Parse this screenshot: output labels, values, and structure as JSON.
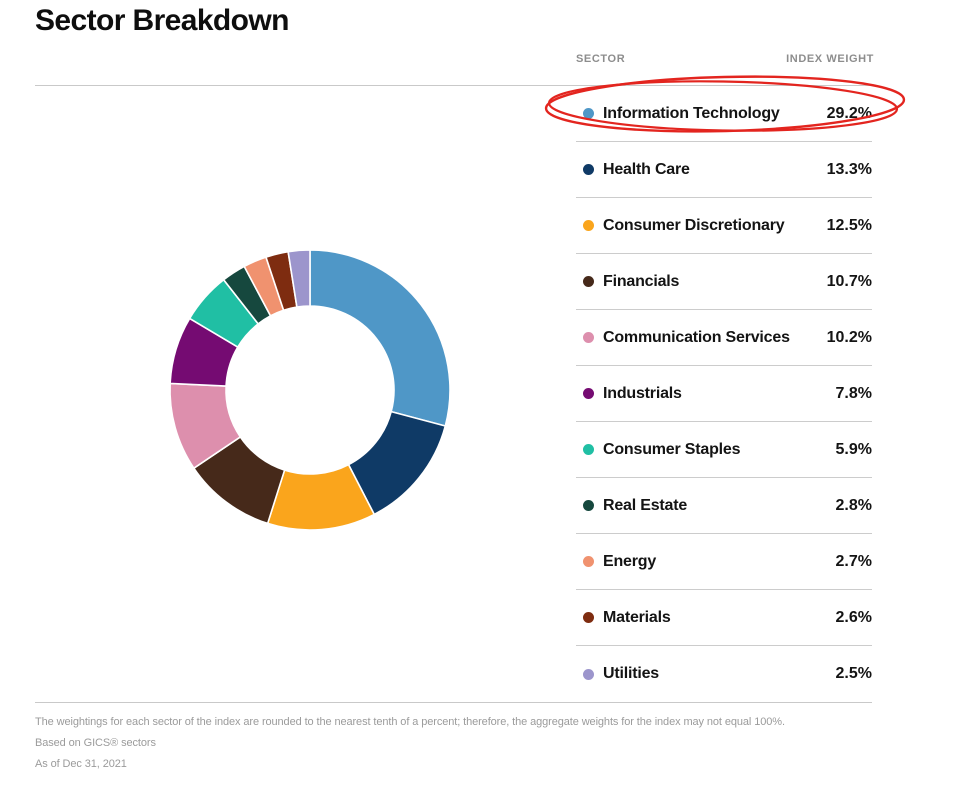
{
  "title": "Sector Breakdown",
  "table": {
    "headers": [
      "SECTOR",
      "INDEX WEIGHT"
    ],
    "rows": [
      {
        "sector": "Information Technology",
        "weight": "29.2%",
        "color": "#4f97c7"
      },
      {
        "sector": "Health Care",
        "weight": "13.3%",
        "color": "#0f3a66"
      },
      {
        "sector": "Consumer Discretionary",
        "weight": "12.5%",
        "color": "#faa51c"
      },
      {
        "sector": "Financials",
        "weight": "10.7%",
        "color": "#46291a"
      },
      {
        "sector": "Communication Services",
        "weight": "10.2%",
        "color": "#dd8fad"
      },
      {
        "sector": "Industrials",
        "weight": "7.8%",
        "color": "#750b72"
      },
      {
        "sector": "Consumer Staples",
        "weight": "5.9%",
        "color": "#20bfa4"
      },
      {
        "sector": "Real Estate",
        "weight": "2.8%",
        "color": "#16483e"
      },
      {
        "sector": "Energy",
        "weight": "2.7%",
        "color": "#f0926f"
      },
      {
        "sector": "Materials",
        "weight": "2.6%",
        "color": "#7e2c10"
      },
      {
        "sector": "Utilities",
        "weight": "2.5%",
        "color": "#9c95cc"
      }
    ]
  },
  "chart_data": {
    "type": "pie",
    "subtype": "donut",
    "title": "Sector Breakdown",
    "categories": [
      "Information Technology",
      "Health Care",
      "Consumer Discretionary",
      "Financials",
      "Communication Services",
      "Industrials",
      "Consumer Staples",
      "Real Estate",
      "Energy",
      "Materials",
      "Utilities"
    ],
    "values": [
      29.2,
      13.3,
      12.5,
      10.7,
      10.2,
      7.8,
      5.9,
      2.8,
      2.7,
      2.6,
      2.5
    ],
    "colors": [
      "#4f97c7",
      "#0f3a66",
      "#faa51c",
      "#46291a",
      "#dd8fad",
      "#750b72",
      "#20bfa4",
      "#16483e",
      "#f0926f",
      "#7e2c10",
      "#9c95cc"
    ],
    "start": "top",
    "direction": "clockwise",
    "inner_radius_ratio": 0.6,
    "legend_position": "right",
    "slice_gap_color": "#ffffff"
  },
  "annotation": {
    "shape": "hand-drawn-ellipse",
    "highlighted_row": "Information Technology",
    "highlighted_value": "29.2%",
    "color": "#e3251f"
  },
  "footnotes": [
    "The weightings for each sector of the index are rounded to the nearest tenth of a percent; therefore, the aggregate weights for the index may not equal 100%.",
    "Based on GICS® sectors",
    "As of Dec 31, 2021"
  ]
}
